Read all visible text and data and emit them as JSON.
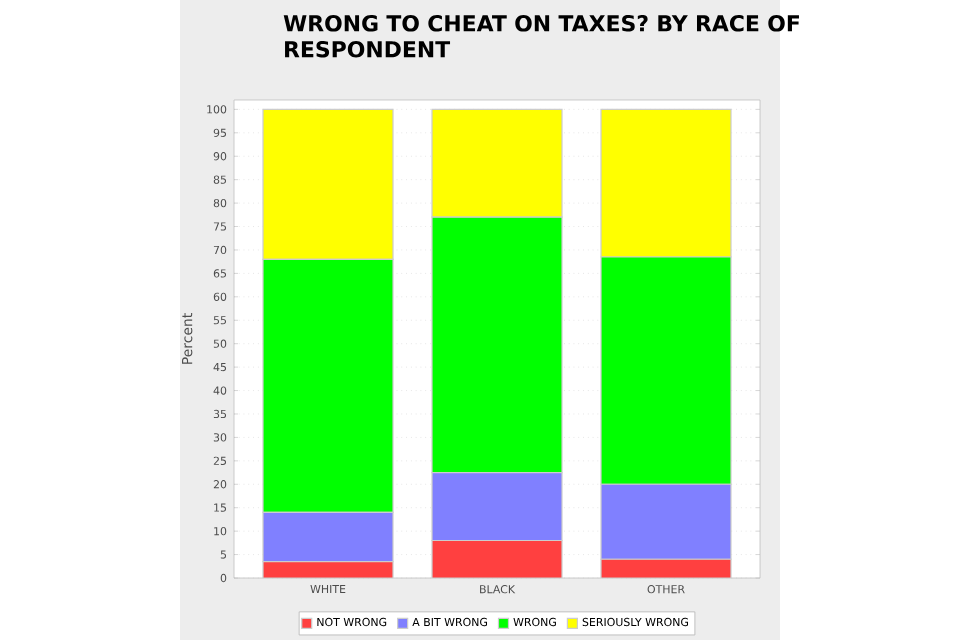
{
  "chart_data": {
    "type": "bar",
    "stacked": true,
    "title": "WRONG TO CHEAT ON TAXES? BY RACE OF RESPONDENT",
    "ylabel": "Percent",
    "categories": [
      "WHITE",
      "BLACK",
      "OTHER"
    ],
    "series": [
      {
        "name": "NOT WRONG",
        "color": "#ff4040",
        "values": [
          3.5,
          8,
          4
        ]
      },
      {
        "name": "A BIT WRONG",
        "color": "#8080ff",
        "values": [
          10.5,
          14.5,
          16
        ]
      },
      {
        "name": "WRONG",
        "color": "#00ff00",
        "values": [
          54,
          54.5,
          48.5
        ]
      },
      {
        "name": "SERIOUSLY WRONG",
        "color": "#ffff00",
        "values": [
          32,
          23,
          31.5
        ]
      }
    ],
    "ylim": [
      0,
      102
    ],
    "yticks": [
      0,
      5,
      10,
      15,
      20,
      25,
      30,
      35,
      40,
      45,
      50,
      55,
      60,
      65,
      70,
      75,
      80,
      85,
      90,
      95,
      100
    ],
    "grid": "y",
    "legend": "bottom"
  }
}
